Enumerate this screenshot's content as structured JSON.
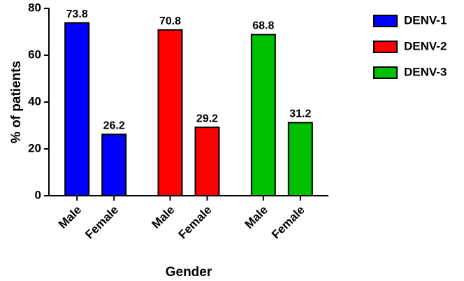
{
  "chart_data": {
    "type": "bar",
    "xlabel": "Gender",
    "ylabel": "% of patients",
    "categories": [
      "Male",
      "Female"
    ],
    "series": [
      {
        "name": "DENV-1",
        "color": "#0000ff",
        "values": [
          73.8,
          26.2
        ]
      },
      {
        "name": "DENV-2",
        "color": "#ff0000",
        "values": [
          70.8,
          29.2
        ]
      },
      {
        "name": "DENV-3",
        "color": "#00c000",
        "values": [
          68.8,
          31.2
        ]
      }
    ],
    "ylim": [
      0,
      80
    ],
    "yticks": [
      0,
      20,
      40,
      60,
      80
    ],
    "legend": "right"
  }
}
